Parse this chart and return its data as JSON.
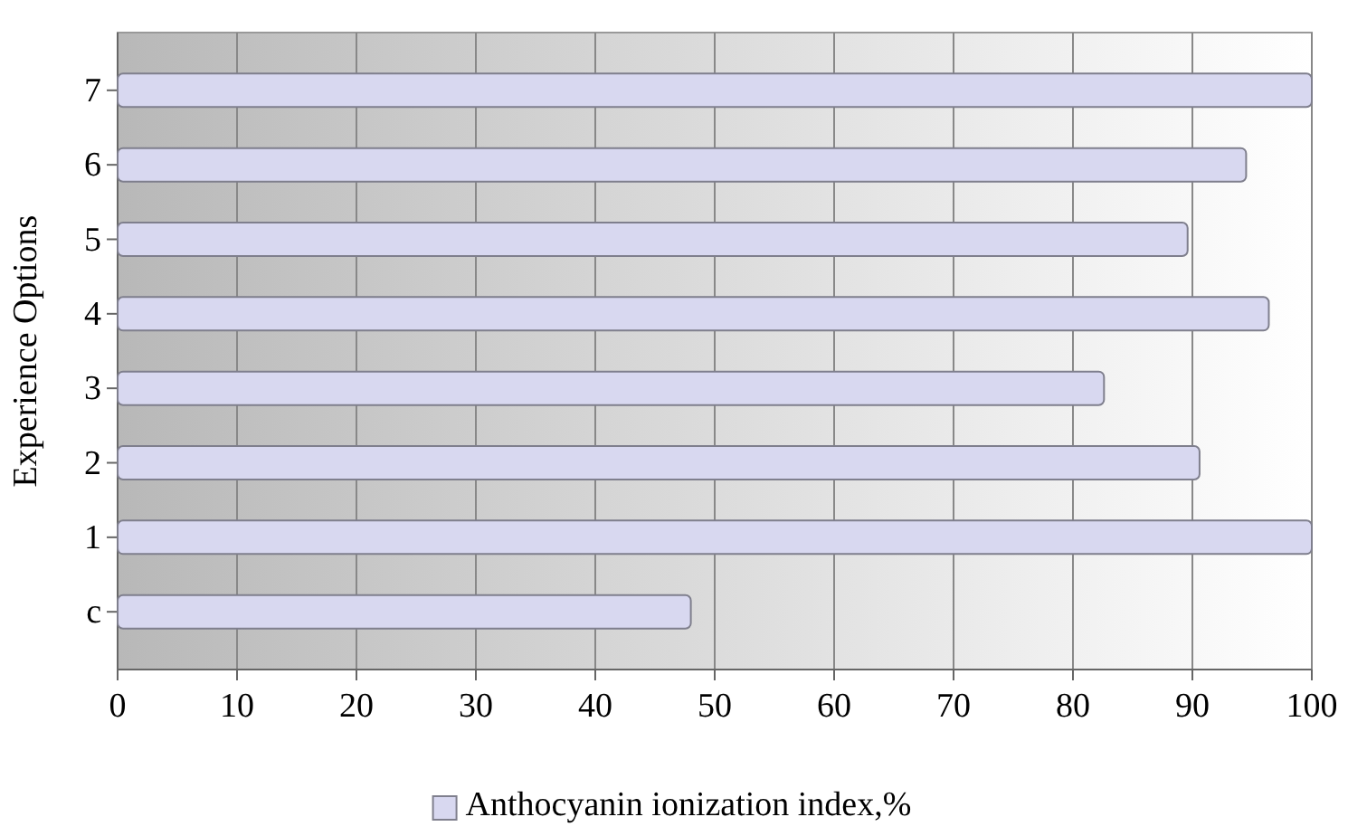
{
  "chart_data": {
    "type": "bar",
    "orientation": "horizontal",
    "ylabel": "Experience Options",
    "categories": [
      "7",
      "6",
      "5",
      "4",
      "3",
      "2",
      "1",
      "c"
    ],
    "series": [
      {
        "name": "Anthocyanin ionization index,%",
        "color": "#d8d8f0",
        "values": [
          100,
          94.5,
          89.6,
          96.4,
          82.6,
          90.6,
          100,
          48
        ]
      }
    ],
    "xlim": [
      0,
      100
    ],
    "xticks": [
      0,
      10,
      20,
      30,
      40,
      50,
      60,
      70,
      80,
      90,
      100
    ],
    "grid": "x",
    "legend": "bottom"
  }
}
